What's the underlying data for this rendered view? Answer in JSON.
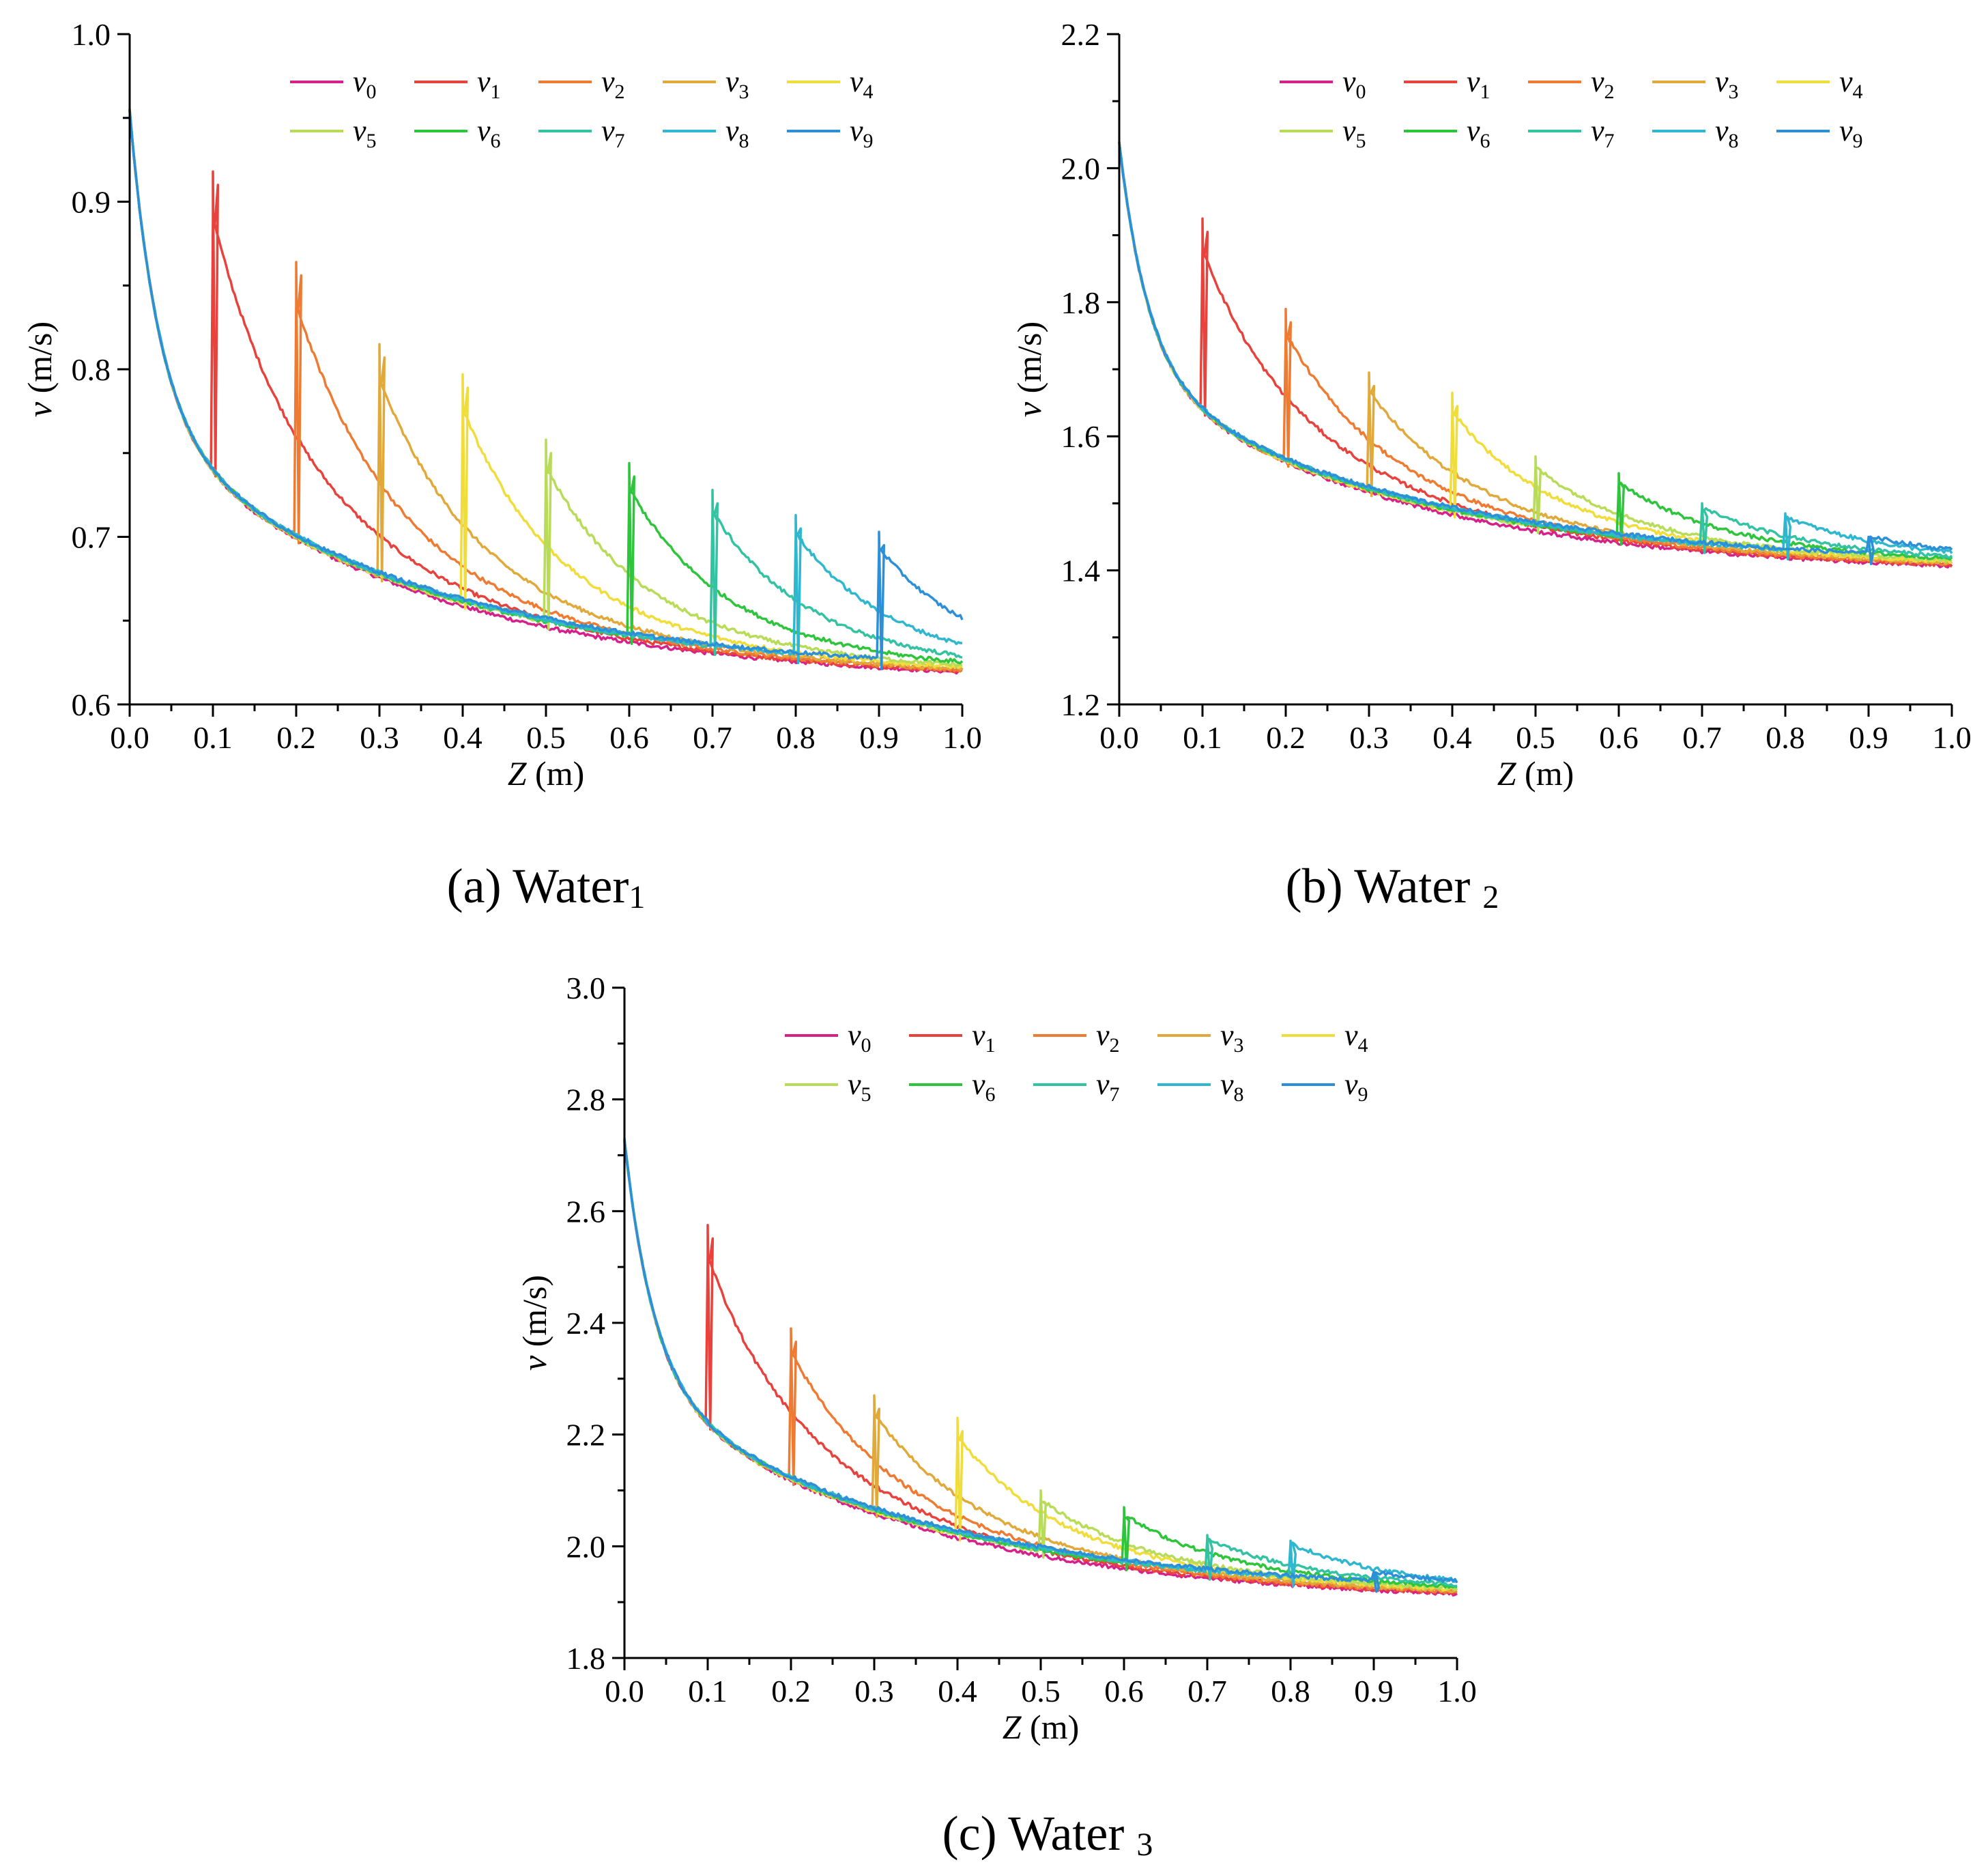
{
  "figure": {
    "series_names": [
      "v0",
      "v1",
      "v2",
      "v3",
      "v4",
      "v5",
      "v6",
      "v7",
      "v8",
      "v9"
    ],
    "series_colors": [
      "#d6218a",
      "#e8423c",
      "#ef7b33",
      "#e1a93a",
      "#f0dd3c",
      "#b8dc58",
      "#2ec53c",
      "#33c2a2",
      "#2fb7cf",
      "#2d8fd8"
    ]
  },
  "chart_data": [
    {
      "type": "line",
      "title": "(a) Water1",
      "caption_main": "(a) Water",
      "caption_sub": "1",
      "xlabel_var": "Z",
      "xlabel_unit": " (m)",
      "ylabel_var": "v",
      "ylabel_unit": " (m/s)",
      "xlim": [
        0.0,
        1.0
      ],
      "ylim": [
        0.6,
        1.0
      ],
      "xticks": [
        "0.0",
        "0.1",
        "0.2",
        "0.3",
        "0.4",
        "0.5",
        "0.6",
        "0.7",
        "0.8",
        "0.9",
        "1.0"
      ],
      "yticks": [
        "0.6",
        "0.7",
        "0.8",
        "0.9",
        "1.0"
      ],
      "v_start": 0.975,
      "v_knee": 0.77,
      "v_end": 0.615,
      "series": [
        {
          "name": "v0",
          "peak_z": null,
          "peak_v": null
        },
        {
          "name": "v1",
          "peak_z": 0.1,
          "peak_v": 0.918
        },
        {
          "name": "v2",
          "peak_z": 0.2,
          "peak_v": 0.864
        },
        {
          "name": "v3",
          "peak_z": 0.3,
          "peak_v": 0.815
        },
        {
          "name": "v4",
          "peak_z": 0.4,
          "peak_v": 0.797
        },
        {
          "name": "v5",
          "peak_z": 0.5,
          "peak_v": 0.758
        },
        {
          "name": "v6",
          "peak_z": 0.6,
          "peak_v": 0.744
        },
        {
          "name": "v7",
          "peak_z": 0.7,
          "peak_v": 0.728
        },
        {
          "name": "v8",
          "peak_z": 0.8,
          "peak_v": 0.713
        },
        {
          "name": "v9",
          "peak_z": 0.9,
          "peak_v": 0.703
        }
      ]
    },
    {
      "type": "line",
      "title": "(b) Water 2",
      "caption_main": "(b) Water ",
      "caption_sub": "2",
      "xlabel_var": "Z",
      "xlabel_unit": " (m)",
      "ylabel_var": "v",
      "ylabel_unit": " (m/s)",
      "xlim": [
        0.0,
        1.0
      ],
      "ylim": [
        1.2,
        2.2
      ],
      "xticks": [
        "0.0",
        "0.1",
        "0.2",
        "0.3",
        "0.4",
        "0.5",
        "0.6",
        "0.7",
        "0.8",
        "0.9",
        "1.0"
      ],
      "yticks": [
        "1.2",
        "1.4",
        "1.6",
        "1.8",
        "2.0",
        "2.2"
      ],
      "v_start": 2.075,
      "v_knee": 1.7,
      "v_end": 1.4,
      "series": [
        {
          "name": "v0",
          "peak_z": null,
          "peak_v": null
        },
        {
          "name": "v1",
          "peak_z": 0.1,
          "peak_v": 1.925
        },
        {
          "name": "v2",
          "peak_z": 0.2,
          "peak_v": 1.79
        },
        {
          "name": "v3",
          "peak_z": 0.3,
          "peak_v": 1.695
        },
        {
          "name": "v4",
          "peak_z": 0.4,
          "peak_v": 1.665
        },
        {
          "name": "v5",
          "peak_z": 0.5,
          "peak_v": 1.57
        },
        {
          "name": "v6",
          "peak_z": 0.6,
          "peak_v": 1.545
        },
        {
          "name": "v7",
          "peak_z": 0.7,
          "peak_v": 1.5
        },
        {
          "name": "v8",
          "peak_z": 0.8,
          "peak_v": 1.485
        },
        {
          "name": "v9",
          "peak_z": 0.9,
          "peak_v": 1.45
        }
      ]
    },
    {
      "type": "line",
      "title": "(c) Water 3",
      "caption_main": "(c) Water ",
      "caption_sub": "3",
      "xlabel_var": "Z",
      "xlabel_unit": " (m)",
      "ylabel_var": "v",
      "ylabel_unit": " (m/s)",
      "xlim": [
        0.0,
        1.0
      ],
      "ylim": [
        1.8,
        3.0
      ],
      "xticks": [
        "0.0",
        "0.1",
        "0.2",
        "0.3",
        "0.4",
        "0.5",
        "0.6",
        "0.7",
        "0.8",
        "0.9",
        "1.0"
      ],
      "yticks": [
        "1.8",
        "2.0",
        "2.2",
        "2.4",
        "2.6",
        "2.8",
        "3.0"
      ],
      "v_start": 2.775,
      "v_knee": 2.3,
      "v_end": 1.905,
      "series": [
        {
          "name": "v0",
          "peak_z": null,
          "peak_v": null
        },
        {
          "name": "v1",
          "peak_z": 0.1,
          "peak_v": 2.575
        },
        {
          "name": "v2",
          "peak_z": 0.2,
          "peak_v": 2.39
        },
        {
          "name": "v3",
          "peak_z": 0.3,
          "peak_v": 2.27
        },
        {
          "name": "v4",
          "peak_z": 0.4,
          "peak_v": 2.23
        },
        {
          "name": "v5",
          "peak_z": 0.5,
          "peak_v": 2.1
        },
        {
          "name": "v6",
          "peak_z": 0.6,
          "peak_v": 2.07
        },
        {
          "name": "v7",
          "peak_z": 0.7,
          "peak_v": 2.02
        },
        {
          "name": "v8",
          "peak_z": 0.8,
          "peak_v": 2.01
        },
        {
          "name": "v9",
          "peak_z": 0.9,
          "peak_v": 1.95
        }
      ]
    }
  ]
}
